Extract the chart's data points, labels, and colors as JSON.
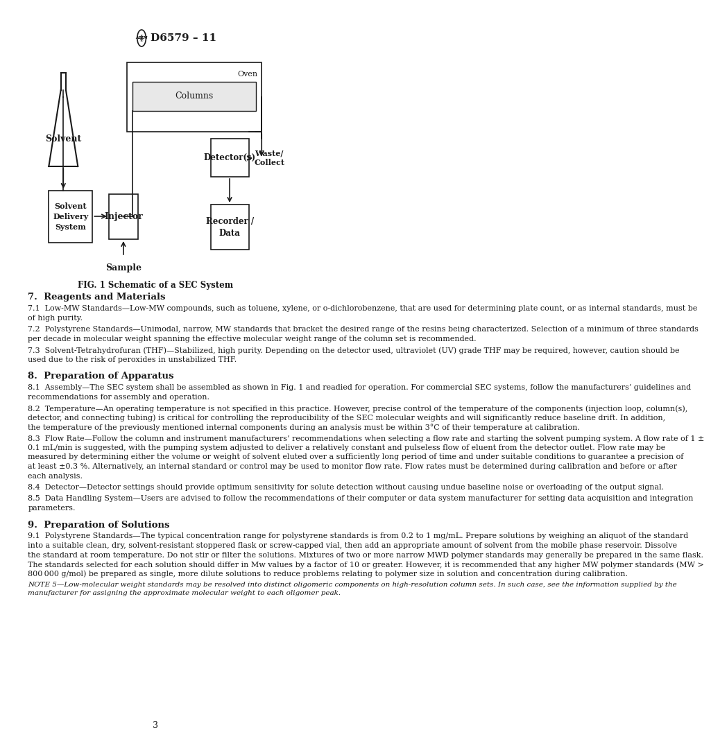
{
  "page_number": "3",
  "header_text": "D6579 – 11",
  "fig_caption": "FIG. 1 Schematic of a SEC System",
  "background_color": "#ffffff",
  "text_color": "#1a1a1a",
  "diagram": {
    "flask_label": "Solvent",
    "box1_label": "Solvent\nDelivery\nSystem",
    "box2_label": "Injector",
    "sample_label": "Sample",
    "oven_label": "Oven",
    "columns_label": "Columns",
    "detector_label": "Detector(s)",
    "waste_label": "Waste/\nCollect",
    "recorder_label": "Recorder /\nData"
  },
  "sections": [
    {
      "heading": "7.  Reagents and Materials",
      "paragraphs": [
        "    7.1  ⁣Low-MW Standards⁣—Low-MW compounds, such as toluene, xylene, or ⁣o⁣-dichlorobenzene, that are used for determining plate count, or as internal standards, must be of high purity.",
        "    7.2  ⁣Polystyrene Standards⁣—Unimodal, narrow, MW standards that bracket the desired range of the resins being characterized. Selection of a minimum of three standards per decade in molecular weight spanning the effective molecular weight range of the column set is recommended.",
        "    7.3  ⁣Solvent-Tetrahydrofuran (THF)⁣—Stabilized, high purity. Depending on the detector used, ultraviolet (UV) grade THF may be required, however, caution should be used due to the risk of peroxides in unstabilized THF."
      ]
    },
    {
      "heading": "8.  Preparation of Apparatus",
      "paragraphs": [
        "    8.1  ⁣Assembly⁣—The SEC system shall be assembled as shown in Fig. 1 and readied for operation. For commercial SEC systems, follow the manufacturers’ guidelines and recommendations for assembly and operation.",
        "    8.2  ⁣Temperature⁣—An operating temperature is not specified in this practice. However, precise control of the temperature of the components (injection loop, column(s), detector, and connecting tubing) is critical for controlling the reproducibility of the SEC molecular weights and will significantly reduce baseline drift. In addition, the temperature of the previously mentioned internal components during an analysis must be within 3°C of their temperature at calibration.",
        "    8.3  ⁣Flow Rate⁣—Follow the column and instrument manufacturers’ recommendations when selecting a flow rate and starting the solvent pumping system. A flow rate of 1 ± 0.1 mL/min is suggested, with the pumping system adjusted to deliver a relatively constant and pulseless flow of eluent from the detector outlet. Flow rate may be measured by determining either the volume or weight of solvent eluted over a sufficiently long period of time and under suitable conditions to guarantee a precision of at least ±0.3 %. Alternatively, an internal standard or control may be used to monitor flow rate. Flow rates must be determined during calibration and before or after each analysis.",
        "    8.4  ⁣Detector⁣—Detector settings should provide optimum sensitivity for solute detection without causing undue baseline noise or overloading of the output signal.",
        "    8.5  ⁣Data Handling System⁣—Users are advised to follow the recommendations of their computer or data system manufacturer for setting data acquisition and integration parameters."
      ]
    },
    {
      "heading": "9.  Preparation of Solutions",
      "paragraphs": [
        "    9.1  ⁣Polystyrene Standards⁣—The typical concentration range for polystyrene standards is from 0.2 to 1 mg/mL. Prepare solutions by weighing an aliquot of the standard into a suitable clean, dry, solvent-resistant stoppered flask or screw-capped vial, then add an appropriate amount of solvent from the mobile phase reservoir. Dissolve the standard at room temperature. Do not stir or filter the solutions. Mixtures of two or more narrow MWD polymer standards may generally be prepared in the same flask. The standards selected for each solution should differ in Mw values by a factor of 10 or greater. However, it is recommended that any higher MW polymer standards (MW > 800 000 g/mol) be prepared as single, more dilute solutions to reduce problems relating to polymer size in solution and concentration during calibration.",
        "NOTE 5—Low-molecular weight standards may be resolved into distinct oligomeric components on high-resolution column sets. In such case, see the information supplied by the manufacturer for assigning the approximate molecular weight to each oligomer peak."
      ]
    }
  ]
}
